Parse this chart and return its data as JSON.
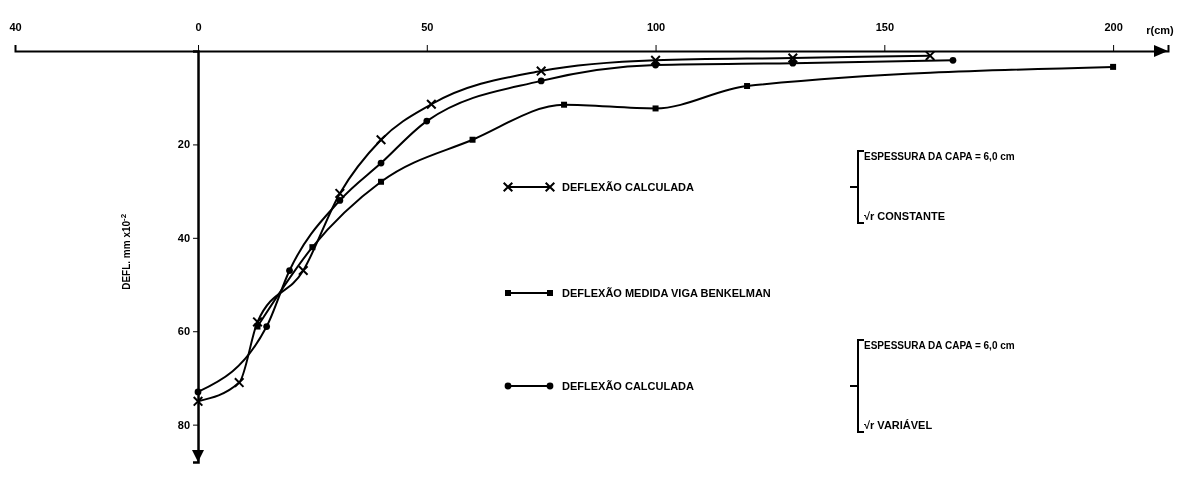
{
  "chart_data": {
    "type": "line",
    "xlabel": "r(cm)",
    "ylabel": "DEFL. mm x10$^{-2}$",
    "xlim": [
      -40,
      212
    ],
    "ylim": [
      88,
      0
    ],
    "xticks": [
      {
        "value": -40,
        "label": "40"
      },
      0,
      50,
      100,
      150,
      200
    ],
    "yticks": [
      20,
      40,
      60,
      80
    ],
    "legend": "right",
    "line_style": "solid",
    "series": [
      {
        "name": "DEFLEXÃO CALCULADA",
        "color": "#000000",
        "marker": "cross",
        "x": [
          0,
          9,
          13,
          23,
          31,
          40,
          51,
          75,
          100,
          130,
          160
        ],
        "values": [
          75,
          71,
          58,
          47,
          30.5,
          19,
          11.4,
          4.3,
          2,
          1.5,
          1
        ]
      },
      {
        "name": "DEFLEXÃO MEDIDA VIGA BENKELMAN",
        "color": "#000000",
        "marker": "square",
        "x": [
          13,
          25,
          40,
          60,
          80,
          100,
          120,
          200
        ],
        "values": [
          59,
          42,
          28,
          19,
          11.5,
          12.3,
          7.5,
          3.4
        ]
      },
      {
        "name": "DEFLEXÃO CALCULADA",
        "color": "#000000",
        "marker": "circle",
        "x": [
          0,
          15,
          20,
          31,
          40,
          50,
          75,
          100,
          130,
          165
        ],
        "values": [
          73,
          59,
          47,
          32,
          24,
          15,
          6.4,
          3,
          2.6,
          2
        ]
      }
    ],
    "annotations": [
      "ESPESSURA DA CAPA = 6,0 cm",
      "√r CONSTANTE",
      "ESPESSURA DA CAPA = 6,0 cm",
      "√r VARIÁVEL"
    ]
  }
}
